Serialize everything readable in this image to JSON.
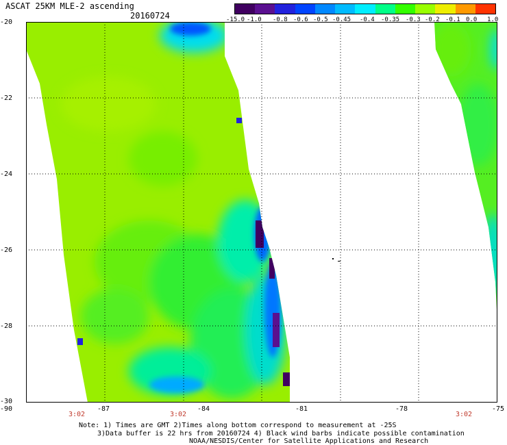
{
  "header": {
    "title": "ASCAT 25KM MLE-2 ascending",
    "date": "20160724"
  },
  "colorbar": {
    "tick_labels": [
      "-15.0",
      "-1.0",
      "-0.8",
      "-0.6",
      "-0.5",
      "-0.45",
      "-0.4",
      "-0.35",
      "-0.3",
      "-0.2",
      "-0.1",
      "0.0",
      "1.0"
    ],
    "colors": [
      "#400060",
      "#5a1090",
      "#2222dd",
      "#0044ff",
      "#0088ff",
      "#00bbff",
      "#00eeff",
      "#00ff88",
      "#33ff00",
      "#99ff00",
      "#eeee00",
      "#ff9900",
      "#ff3300"
    ]
  },
  "map": {
    "lat_labels": [
      "-20",
      "-22",
      "-24",
      "-26",
      "-28",
      "-30"
    ],
    "lon_labels": [
      "-90",
      "-87",
      "-84",
      "-81",
      "-78",
      "-75"
    ],
    "time_labels": [
      "3:02",
      "3:02",
      "3:02"
    ]
  },
  "notes": {
    "line1": "Note: 1) Times are GMT 2)Times along bottom correspond to measurement at -25S",
    "line2": "3)Data buffer is 22 hrs from 20160724 4) Black wind barbs indicate possible contamination",
    "line3": "NOAA/NESDIS/Center for Satellite Applications and Research"
  }
}
